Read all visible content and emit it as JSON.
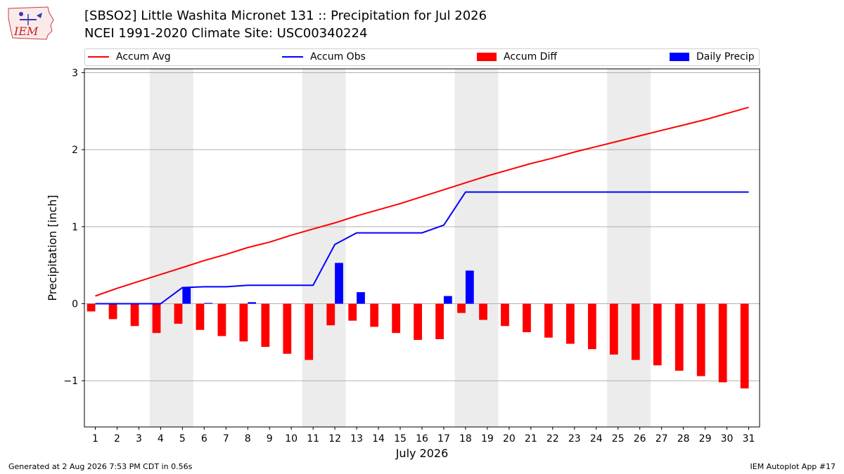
{
  "title_line1": "[SBSO2] Little Washita Micronet 131 :: Precipitation for Jul 2026",
  "title_line2": "NCEI 1991-2020 Climate Site: USC00340224",
  "logo_text": "IEM",
  "footer_left": "Generated at 2 Aug 2026 7:53 PM CDT in 0.56s",
  "footer_right": "IEM Autoplot App #17",
  "chart_data": {
    "type": "line",
    "title": "[SBSO2] Little Washita Micronet 131 :: Precipitation for Jul 2026",
    "subtitle": "NCEI 1991-2020 Climate Site: USC00340224",
    "xlabel": "July 2026",
    "ylabel": "Precipitation [inch]",
    "ylim": [
      -1.6,
      3.05
    ],
    "xlim": [
      0.5,
      31.5
    ],
    "yticks": [
      -1,
      0,
      1,
      2,
      3
    ],
    "ytick_labels": [
      "−1",
      "0",
      "1",
      "2",
      "3"
    ],
    "x": [
      1,
      2,
      3,
      4,
      5,
      6,
      7,
      8,
      9,
      10,
      11,
      12,
      13,
      14,
      15,
      16,
      17,
      18,
      19,
      20,
      21,
      22,
      23,
      24,
      25,
      26,
      27,
      28,
      29,
      30,
      31
    ],
    "grid": "horizontal",
    "legend_position": "top",
    "weekend_shading": [
      [
        3.5,
        5.5
      ],
      [
        10.5,
        12.5
      ],
      [
        17.5,
        19.5
      ],
      [
        24.5,
        26.5
      ]
    ],
    "series": [
      {
        "name": "Accum Avg",
        "kind": "line",
        "color": "#ff0000",
        "values": [
          0.1,
          0.2,
          0.29,
          0.38,
          0.47,
          0.56,
          0.64,
          0.73,
          0.8,
          0.89,
          0.97,
          1.05,
          1.14,
          1.22,
          1.3,
          1.39,
          1.48,
          1.57,
          1.66,
          1.74,
          1.82,
          1.89,
          1.97,
          2.04,
          2.11,
          2.18,
          2.25,
          2.32,
          2.39,
          2.47,
          2.55
        ]
      },
      {
        "name": "Accum Obs",
        "kind": "line",
        "color": "#0000ff",
        "values": [
          0.0,
          0.0,
          0.0,
          0.0,
          0.21,
          0.22,
          0.22,
          0.24,
          0.24,
          0.24,
          0.24,
          0.77,
          0.92,
          0.92,
          0.92,
          0.92,
          1.02,
          1.45,
          1.45,
          1.45,
          1.45,
          1.45,
          1.45,
          1.45,
          1.45,
          1.45,
          1.45,
          1.45,
          1.45,
          1.45,
          1.45
        ]
      },
      {
        "name": "Accum Diff",
        "kind": "bar",
        "color": "#ff0000",
        "values": [
          -0.1,
          -0.2,
          -0.29,
          -0.38,
          -0.26,
          -0.34,
          -0.42,
          -0.49,
          -0.56,
          -0.65,
          -0.73,
          -0.28,
          -0.22,
          -0.3,
          -0.38,
          -0.47,
          -0.46,
          -0.12,
          -0.21,
          -0.29,
          -0.37,
          -0.44,
          -0.52,
          -0.59,
          -0.66,
          -0.73,
          -0.8,
          -0.87,
          -0.94,
          -1.02,
          -1.1
        ]
      },
      {
        "name": "Daily Precip",
        "kind": "bar",
        "color": "#0000ff",
        "values": [
          0,
          0,
          0,
          0,
          0.21,
          0.01,
          0,
          0.02,
          0,
          0,
          0,
          0.53,
          0.15,
          0,
          0,
          0,
          0.1,
          0.43,
          0,
          0,
          0,
          0,
          0,
          0,
          0,
          0,
          0,
          0,
          0,
          0,
          0
        ]
      }
    ]
  }
}
